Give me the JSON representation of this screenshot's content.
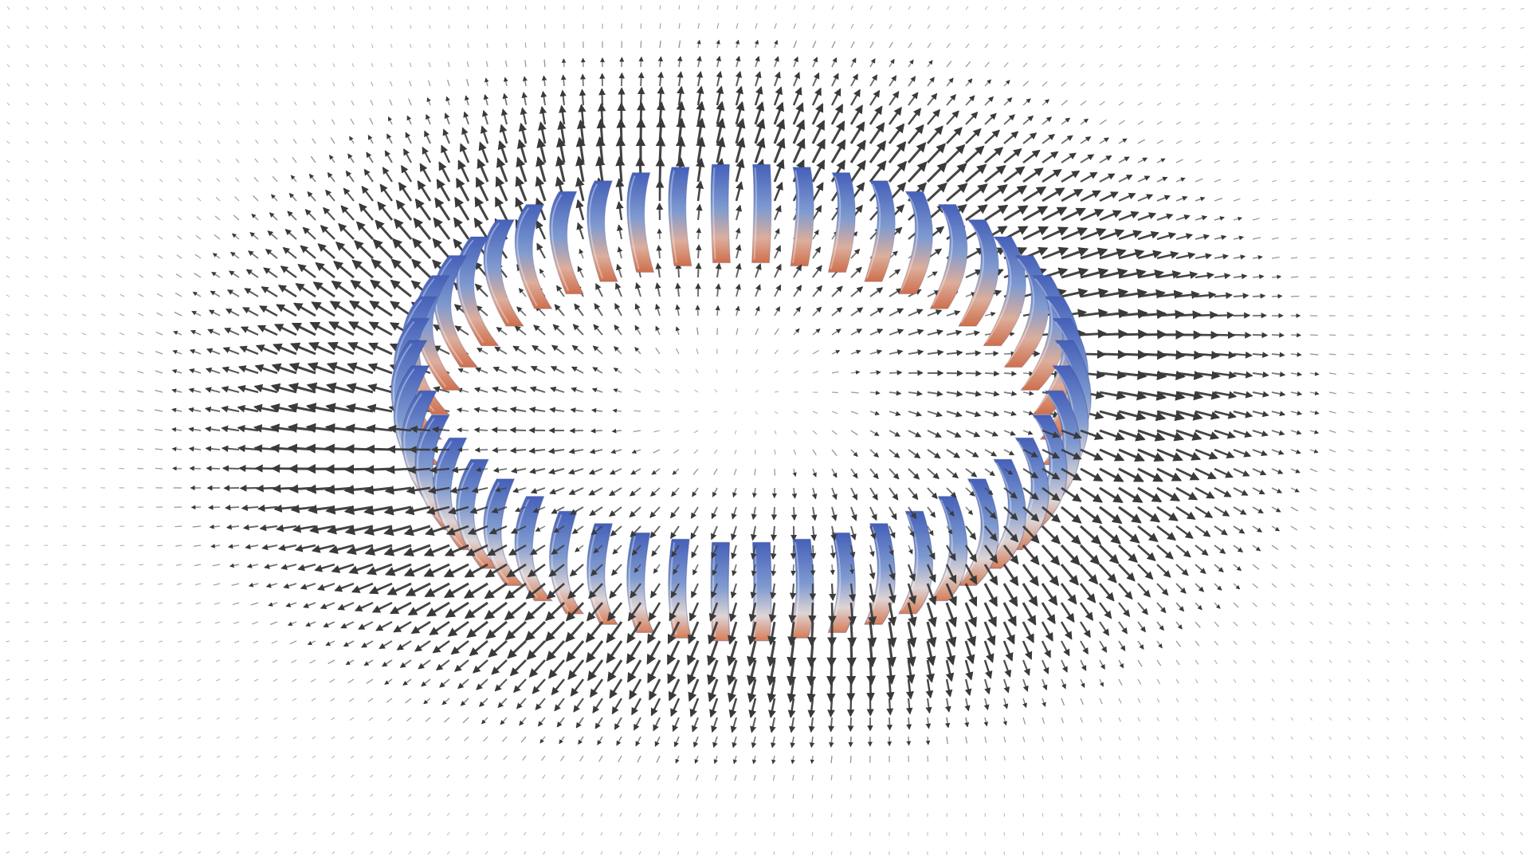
{
  "scene": {
    "subject": "coil-torus-with-vector-field",
    "coil_count": 50,
    "colors": {
      "background": "#ffffff",
      "coil_outer": "#4560b8",
      "coil_mid": "#7f9ad0",
      "coil_inner_light": "#dfe3ea",
      "coil_inner_warm": "#d9825c",
      "coil_inner_hot": "#c75d3d",
      "arrow": "#3a3a3a"
    }
  }
}
